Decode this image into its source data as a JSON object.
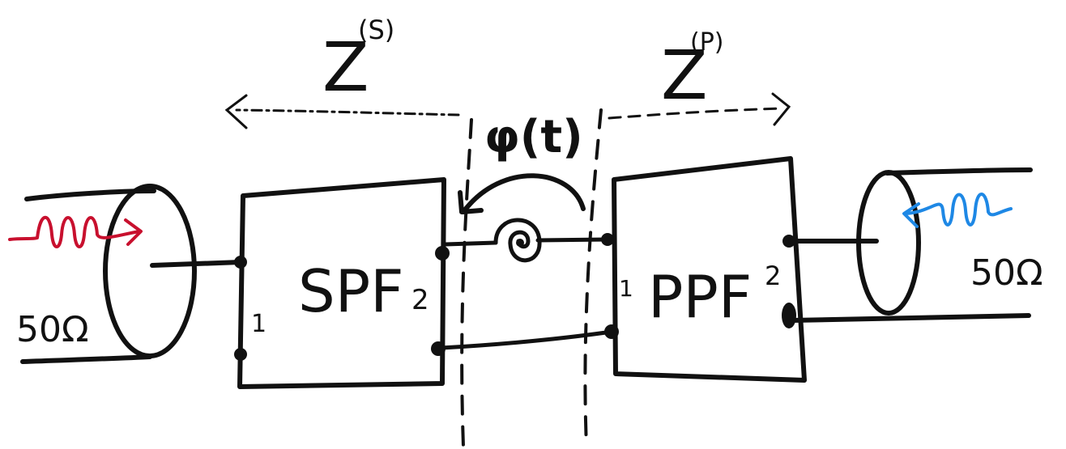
{
  "labels": {
    "z_s": {
      "main": "Z",
      "sup": "(S)"
    },
    "z_p": {
      "main": "Z",
      "sup": "(P)"
    },
    "phi": "φ(t)",
    "spf": "SPF",
    "ppf": "PPF",
    "spf_port1": "1",
    "spf_port2": "2",
    "ppf_port1": "1",
    "ppf_port2": "2",
    "left_impedance": "50Ω",
    "right_impedance": "50Ω"
  },
  "colors": {
    "ink": "#111111",
    "input_wave": "#c8102e",
    "output_wave": "#1e88e5"
  },
  "icons": {
    "input_wave": "wavy-arrow-right-icon",
    "output_wave": "wavy-arrow-left-icon",
    "phase_spiral": "spiral-arrow-icon"
  }
}
